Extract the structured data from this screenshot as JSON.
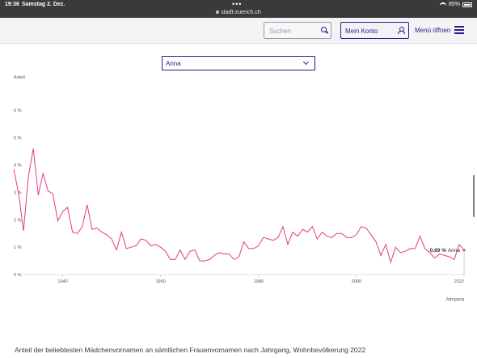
{
  "status": {
    "time": "19:36",
    "date": "Samstag 2. Dez.",
    "url": "stadt-zuerich.ch",
    "battery": "85%"
  },
  "header": {
    "search_placeholder": "Suchen",
    "account_label": "Mein Konto",
    "menu_label": "Menü öffnen"
  },
  "selector": {
    "value": "Anna"
  },
  "caption": "Anteil der beliebtesten Mädchenvornamen an sämtlichen Frauenvornamen nach Jahrgang, Wohnbevölkerung 2022",
  "colors": {
    "accent": "#1f1f8f",
    "series": "#e23a87"
  },
  "chart_data": {
    "type": "line",
    "ylabel": "Anteil",
    "xlabel": "Jahrgang",
    "ylim": [
      0,
      6
    ],
    "xlim": [
      1930,
      2022
    ],
    "yticks": [
      "0 %",
      "1 %",
      "2 %",
      "3 %",
      "4 %",
      "5 %",
      "6 %"
    ],
    "xticks": [
      "1940",
      "1960",
      "1980",
      "2000",
      "2022"
    ],
    "grid": false,
    "annotation": {
      "value": "0.89 %",
      "name": "Anna"
    },
    "series": [
      {
        "name": "Anna",
        "x": [
          1930,
          1931,
          1932,
          1933,
          1934,
          1935,
          1936,
          1937,
          1938,
          1939,
          1940,
          1941,
          1942,
          1943,
          1944,
          1945,
          1946,
          1947,
          1948,
          1949,
          1950,
          1951,
          1952,
          1953,
          1954,
          1955,
          1956,
          1957,
          1958,
          1959,
          1960,
          1961,
          1962,
          1963,
          1964,
          1965,
          1966,
          1967,
          1968,
          1969,
          1970,
          1971,
          1972,
          1973,
          1974,
          1975,
          1976,
          1977,
          1978,
          1979,
          1980,
          1981,
          1982,
          1983,
          1984,
          1985,
          1986,
          1987,
          1988,
          1989,
          1990,
          1991,
          1992,
          1993,
          1994,
          1995,
          1996,
          1997,
          1998,
          1999,
          2000,
          2001,
          2002,
          2003,
          2004,
          2005,
          2006,
          2007,
          2008,
          2009,
          2010,
          2011,
          2012,
          2013,
          2014,
          2015,
          2016,
          2017,
          2018,
          2019,
          2020,
          2021,
          2022
        ],
        "values": [
          3.85,
          2.95,
          1.6,
          3.6,
          4.6,
          2.9,
          3.7,
          3.05,
          2.95,
          1.95,
          2.3,
          2.45,
          1.55,
          1.5,
          1.75,
          2.55,
          1.65,
          1.7,
          1.55,
          1.45,
          1.3,
          0.9,
          1.55,
          0.95,
          1.0,
          1.05,
          1.3,
          1.25,
          1.05,
          1.1,
          1.0,
          0.85,
          0.55,
          0.55,
          0.9,
          0.55,
          0.85,
          0.9,
          0.5,
          0.5,
          0.55,
          0.7,
          0.8,
          0.75,
          0.75,
          0.55,
          0.65,
          1.2,
          0.95,
          0.95,
          1.05,
          1.35,
          1.3,
          1.25,
          1.35,
          1.75,
          1.1,
          1.55,
          1.4,
          1.65,
          1.55,
          1.75,
          1.3,
          1.55,
          1.4,
          1.35,
          1.5,
          1.5,
          1.35,
          1.35,
          1.45,
          1.75,
          1.7,
          1.45,
          1.2,
          0.7,
          1.1,
          0.45,
          1.0,
          0.8,
          0.85,
          0.95,
          0.95,
          1.4,
          0.95,
          0.8,
          0.6,
          0.75,
          0.7,
          0.65,
          0.55,
          1.1,
          0.89
        ]
      }
    ]
  }
}
